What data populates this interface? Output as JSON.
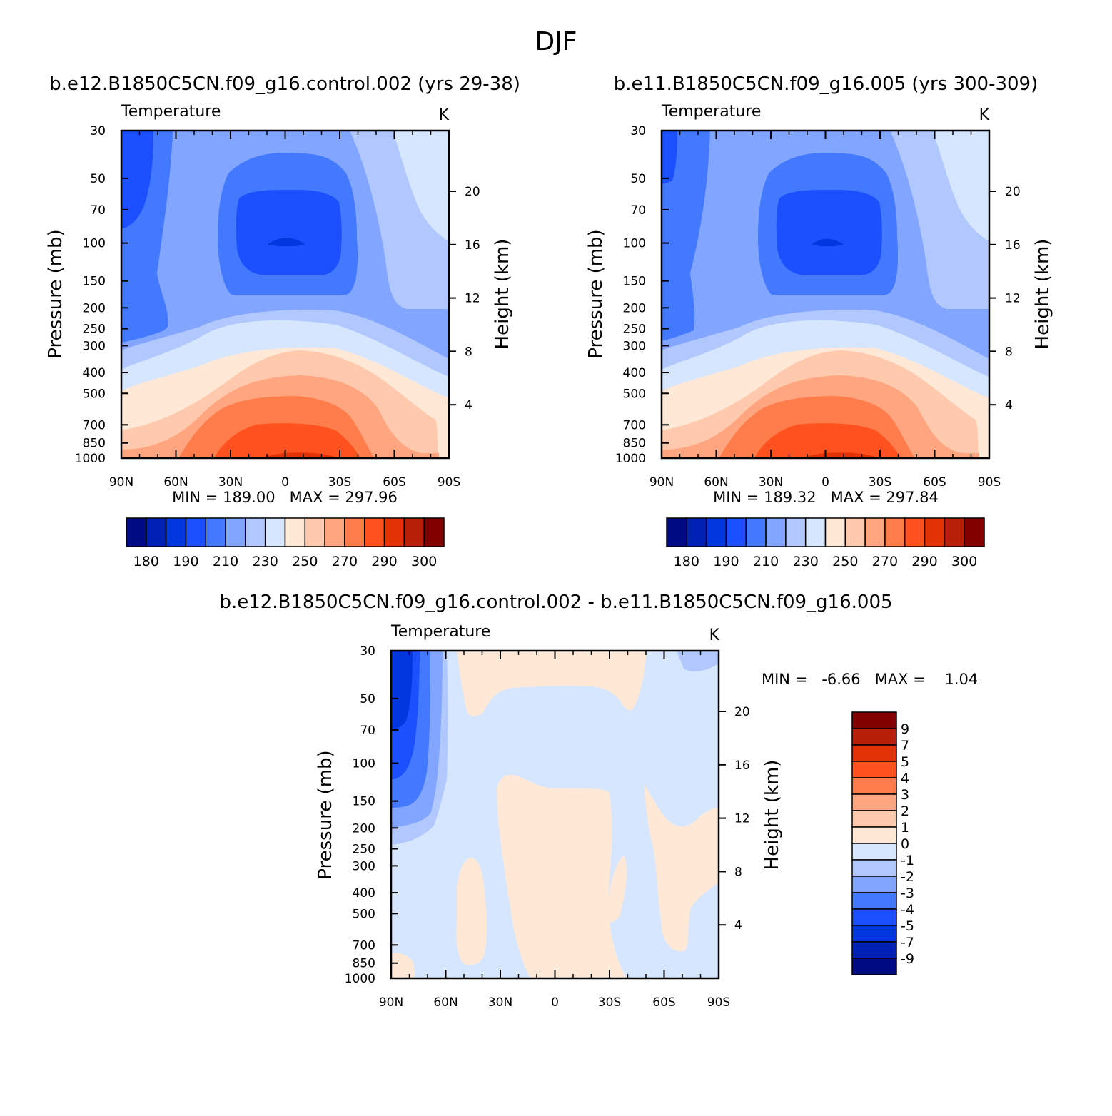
{
  "figure": {
    "title": "DJF"
  },
  "chart_data": [
    {
      "type": "heatmap",
      "title": "b.e12.B1850C5CN.f09_g16.control.002 (yrs 29-38)",
      "subtitle": "Temperature",
      "units": "K",
      "x_ticks": [
        "90N",
        "60N",
        "30N",
        "0",
        "30S",
        "60S",
        "90S"
      ],
      "x_range": [
        90,
        -90
      ],
      "y_left_label": "Pressure (mb)",
      "y_left_ticks": [
        "30",
        "50",
        "70",
        "100",
        "150",
        "200",
        "250",
        "300",
        "400",
        "500",
        "700",
        "850",
        "1000"
      ],
      "y_left_range": [
        30,
        1000
      ],
      "y_left_scale": "log",
      "y_right_label": "Height (km)",
      "y_right_ticks": [
        "4",
        "8",
        "12",
        "16",
        "20"
      ],
      "stats": "MIN = 189.00   MAX = 297.96",
      "min": 189.0,
      "max": 297.96,
      "legend": {
        "orientation": "horizontal",
        "placement": "bottom",
        "labels": [
          "180",
          "190",
          "210",
          "230",
          "250",
          "270",
          "290",
          "300"
        ]
      }
    },
    {
      "type": "heatmap",
      "title": "b.e11.B1850C5CN.f09_g16.005 (yrs 300-309)",
      "subtitle": "Temperature",
      "units": "K",
      "x_ticks": [
        "90N",
        "60N",
        "30N",
        "0",
        "30S",
        "60S",
        "90S"
      ],
      "x_range": [
        90,
        -90
      ],
      "y_left_label": "Pressure (mb)",
      "y_left_ticks": [
        "30",
        "50",
        "70",
        "100",
        "150",
        "200",
        "250",
        "300",
        "400",
        "500",
        "700",
        "850",
        "1000"
      ],
      "y_left_range": [
        30,
        1000
      ],
      "y_left_scale": "log",
      "y_right_label": "Height (km)",
      "y_right_ticks": [
        "4",
        "8",
        "12",
        "16",
        "20"
      ],
      "stats": "MIN = 189.32   MAX = 297.84",
      "min": 189.32,
      "max": 297.84,
      "legend": {
        "orientation": "horizontal",
        "placement": "bottom",
        "labels": [
          "180",
          "190",
          "210",
          "230",
          "250",
          "270",
          "290",
          "300"
        ]
      }
    },
    {
      "type": "heatmap",
      "title": "b.e12.B1850C5CN.f09_g16.control.002 - b.e11.B1850C5CN.f09_g16.005",
      "subtitle": "Temperature",
      "units": "K",
      "x_ticks": [
        "90N",
        "60N",
        "30N",
        "0",
        "30S",
        "60S",
        "90S"
      ],
      "x_range": [
        90,
        -90
      ],
      "y_left_label": "Pressure (mb)",
      "y_left_ticks": [
        "30",
        "50",
        "70",
        "100",
        "150",
        "200",
        "250",
        "300",
        "400",
        "500",
        "700",
        "850",
        "1000"
      ],
      "y_left_range": [
        30,
        1000
      ],
      "y_left_scale": "log",
      "y_right_label": "Height (km)",
      "y_right_ticks": [
        "4",
        "8",
        "12",
        "16",
        "20"
      ],
      "stats": "MIN =   -6.66   MAX =    1.04",
      "min": -6.66,
      "max": 1.04,
      "legend": {
        "orientation": "vertical",
        "placement": "right",
        "labels": [
          "9",
          "7",
          "5",
          "4",
          "3",
          "2",
          "1",
          "0",
          "-1",
          "-2",
          "-3",
          "-4",
          "-5",
          "-7",
          "-9"
        ]
      }
    }
  ],
  "palette": [
    "#000a82",
    "#0022b4",
    "#0037df",
    "#1c50ff",
    "#4279ff",
    "#82a6ff",
    "#b1c8ff",
    "#d6e6ff",
    "#ffe9d6",
    "#ffc9ad",
    "#ffa57f",
    "#ff7c4b",
    "#ff521e",
    "#e23307",
    "#b82009",
    "#820000"
  ]
}
